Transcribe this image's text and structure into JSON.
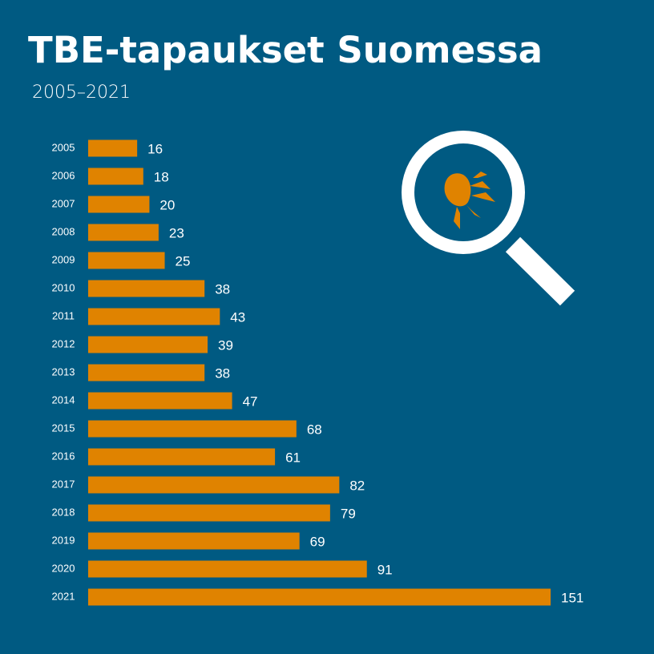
{
  "chart_data": {
    "type": "bar",
    "orientation": "horizontal",
    "title": "TBE-tapaukset Suomessa",
    "subtitle": "2005–2021",
    "categories": [
      "2005",
      "2006",
      "2007",
      "2008",
      "2009",
      "2010",
      "2011",
      "2012",
      "2013",
      "2014",
      "2015",
      "2016",
      "2017",
      "2018",
      "2019",
      "2020",
      "2021"
    ],
    "values": [
      16,
      18,
      20,
      23,
      25,
      38,
      43,
      39,
      38,
      47,
      68,
      61,
      82,
      79,
      69,
      91,
      151
    ],
    "color": "#e08300",
    "background": "#005a82"
  }
}
